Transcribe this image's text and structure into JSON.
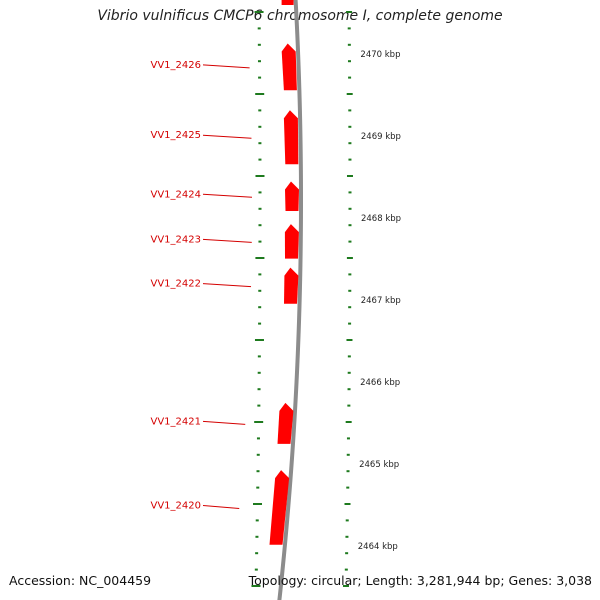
{
  "title": "Vibrio vulnificus CMCP6 chromosome I, complete genome",
  "footer": {
    "accession": "Accession: NC_004459",
    "topology": "Topology: circular; Length: 3,281,944 bp; Genes: 3,038"
  },
  "colors": {
    "gene": "#ff0000",
    "gene_label": "#d40000",
    "backbone": "#8c8c8c",
    "ticks": "#1e7a1e",
    "text": "#222222"
  },
  "scale_labels": [
    "2470 kbp",
    "2469 kbp",
    "2468 kbp",
    "2467 kbp",
    "2466 kbp",
    "2465 kbp",
    "2464 kbp"
  ],
  "genes": [
    {
      "id": "VV1_2426",
      "start_kbp": 2469.558,
      "end_kbp": 2470.128
    },
    {
      "id": "VV1_2425",
      "start_kbp": 2468.655,
      "end_kbp": 2469.315
    },
    {
      "id": "VV1_2424",
      "start_kbp": 2468.085,
      "end_kbp": 2468.445
    },
    {
      "id": "VV1_2423",
      "start_kbp": 2467.505,
      "end_kbp": 2467.925
    },
    {
      "id": "VV1_2422",
      "start_kbp": 2466.955,
      "end_kbp": 2467.395
    },
    {
      "id": "VV1_2421",
      "start_kbp": 2465.245,
      "end_kbp": 2465.745
    },
    {
      "id": "VV1_2420",
      "start_kbp": 2464.015,
      "end_kbp": 2464.925
    }
  ]
}
